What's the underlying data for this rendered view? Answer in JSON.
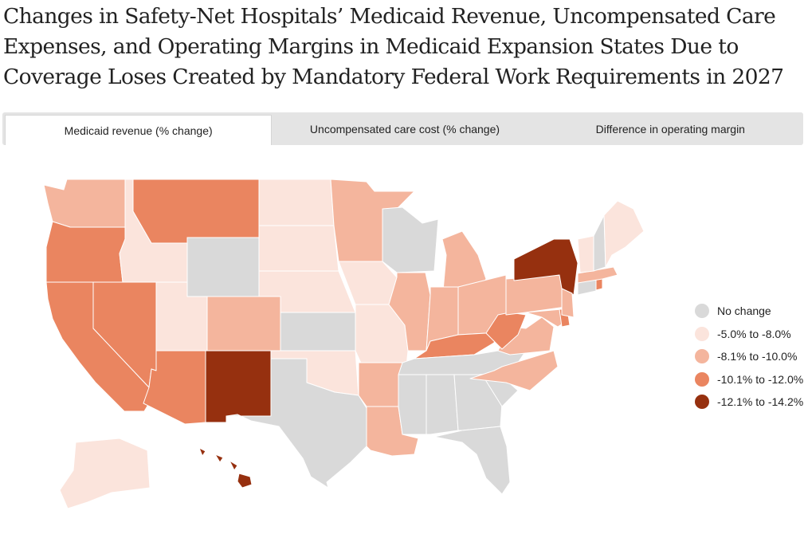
{
  "title": "Changes in Safety-Net Hospitals’ Medicaid Revenue, Uncompensated Care Expenses, and Operating Margins in Medicaid Expansion States Due to Coverage Loses Created by Mandatory Federal Work Requirements in 2027",
  "tabs": [
    {
      "label": "Medicaid revenue (% change)",
      "active": true
    },
    {
      "label": "Uncompensated care cost (% change)",
      "active": false
    },
    {
      "label": "Difference in operating margin",
      "active": false
    }
  ],
  "legend": [
    {
      "label": "No change",
      "color": "#d9d9d9"
    },
    {
      "label": "-5.0% to -8.0%",
      "color": "#fbe4dc"
    },
    {
      "label": "-8.1% to -10.0%",
      "color": "#f4b59d"
    },
    {
      "label": "-10.1% to -12.0%",
      "color": "#ea8560"
    },
    {
      "label": "-12.1% to -14.2%",
      "color": "#96300f"
    }
  ],
  "map_data": {
    "WA": "-8.1% to -10.0%",
    "OR": "-10.1% to -12.0%",
    "CA": "-10.1% to -12.0%",
    "NV": "-10.1% to -12.0%",
    "ID": "-5.0% to -8.0%",
    "MT": "-10.1% to -12.0%",
    "WY": "No change",
    "UT": "-5.0% to -8.0%",
    "AZ": "-10.1% to -12.0%",
    "CO": "-8.1% to -10.0%",
    "NM": "-12.1% to -14.2%",
    "ND": "-5.0% to -8.0%",
    "SD": "-5.0% to -8.0%",
    "NE": "-5.0% to -8.0%",
    "KS": "No change",
    "OK": "-5.0% to -8.0%",
    "TX": "No change",
    "MN": "-8.1% to -10.0%",
    "IA": "-5.0% to -8.0%",
    "MO": "-5.0% to -8.0%",
    "AR": "-8.1% to -10.0%",
    "LA": "-8.1% to -10.0%",
    "WI": "No change",
    "IL": "-8.1% to -10.0%",
    "MI": "-8.1% to -10.0%",
    "IN": "-8.1% to -10.0%",
    "OH": "-8.1% to -10.0%",
    "KY": "-10.1% to -12.0%",
    "TN": "No change",
    "MS": "No change",
    "AL": "No change",
    "GA": "No change",
    "FL": "No change",
    "SC": "No change",
    "NC": "-8.1% to -10.0%",
    "VA": "-8.1% to -10.0%",
    "WV": "-10.1% to -12.0%",
    "PA": "-8.1% to -10.0%",
    "NY": "-12.1% to -14.2%",
    "MD": "-8.1% to -10.0%",
    "DE": "-10.1% to -12.0%",
    "NJ": "-8.1% to -10.0%",
    "CT": "No change",
    "RI": "-10.1% to -12.0%",
    "MA": "-8.1% to -10.0%",
    "VT": "-5.0% to -8.0%",
    "NH": "No change",
    "ME": "-5.0% to -8.0%",
    "AK": "-5.0% to -8.0%",
    "HI": "-12.1% to -14.2%"
  }
}
